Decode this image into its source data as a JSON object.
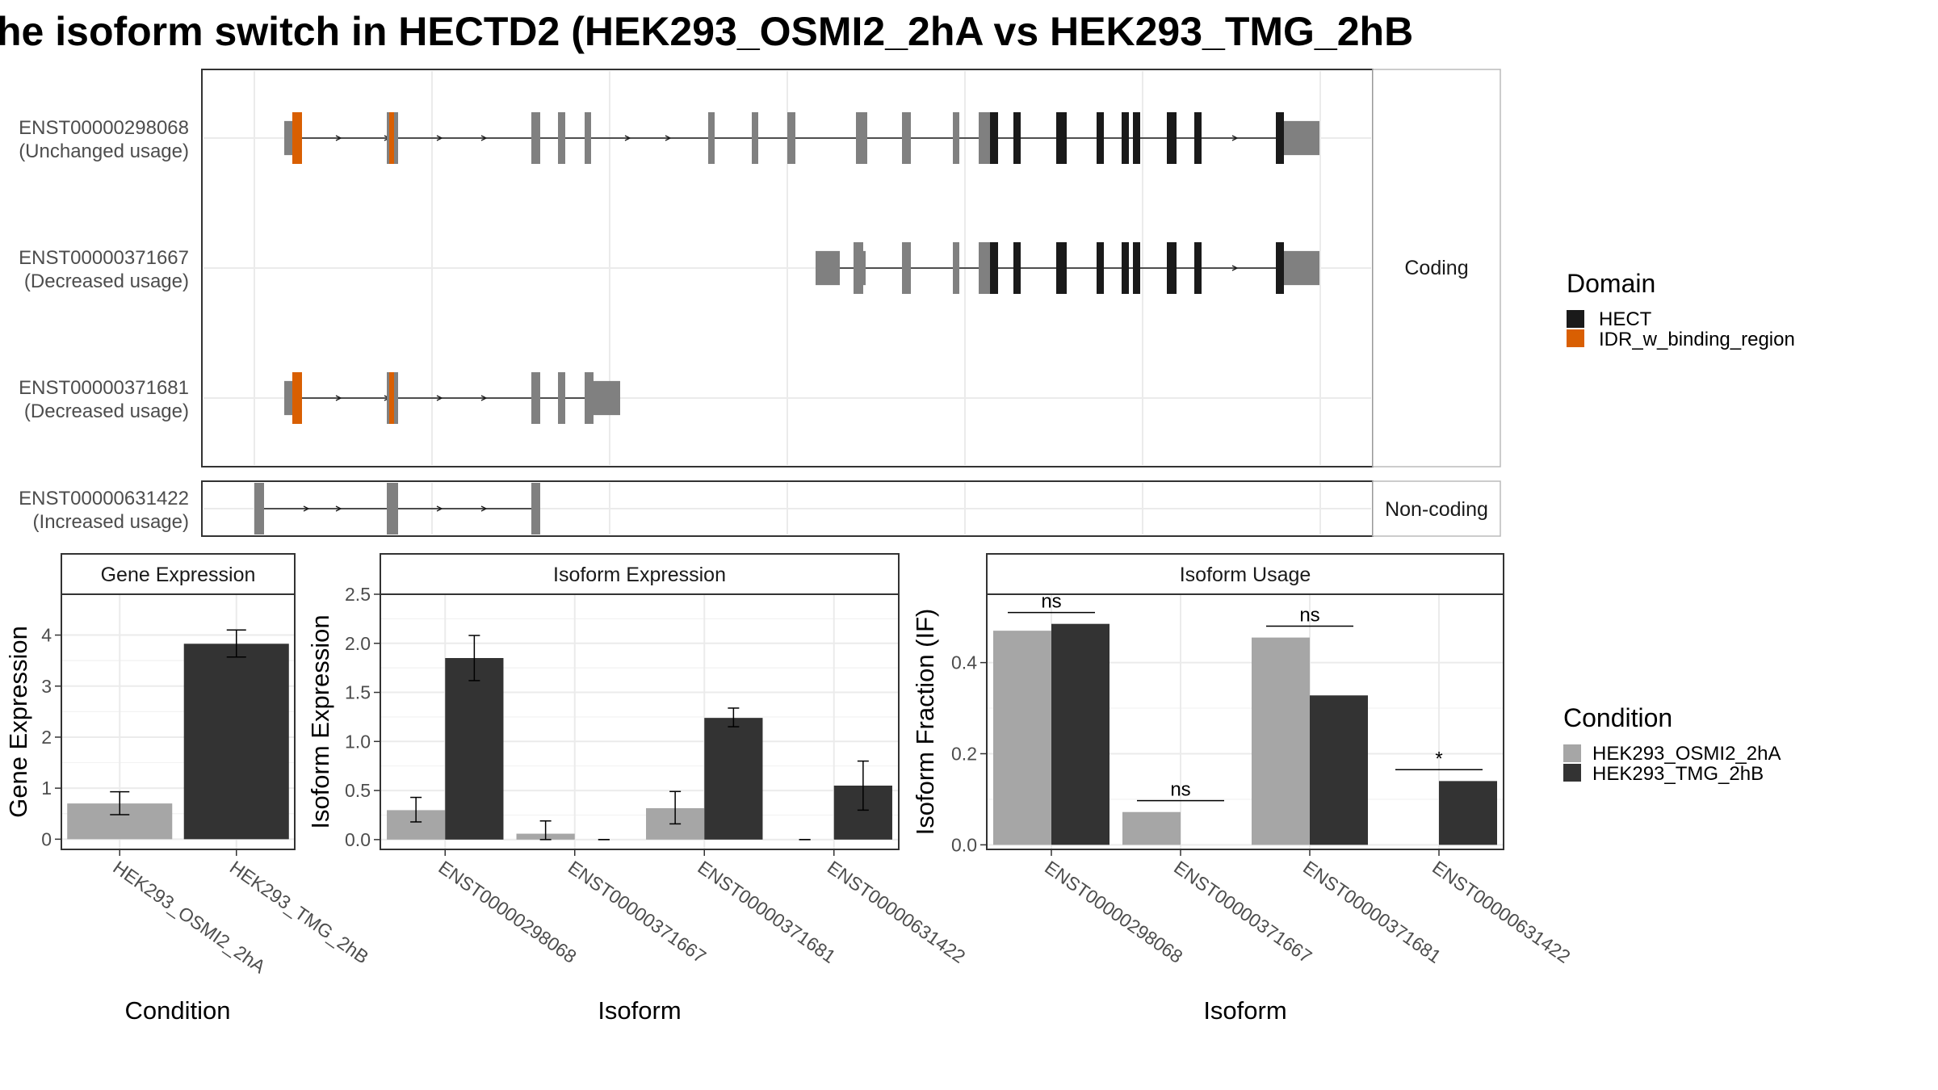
{
  "figure": {
    "title": "he isoform switch in HECTD2 (HEK293_OSMI2_2hA vs HEK293_TMG_2hB"
  },
  "colors": {
    "exon": "#808080",
    "hect": "#1a1a1a",
    "idr": "#d95f02",
    "cond_a": "#a6a6a6",
    "cond_b": "#333333"
  },
  "domain_legend": {
    "title": "Domain",
    "items": [
      {
        "label": "HECT",
        "color": "#1a1a1a"
      },
      {
        "label": "IDR_w_binding_region",
        "color": "#d95f02"
      }
    ]
  },
  "condition_legend": {
    "title": "Condition",
    "items": [
      {
        "label": "HEK293_OSMI2_2hA",
        "color": "#a6a6a6"
      },
      {
        "label": "HEK293_TMG_2hB",
        "color": "#333333"
      }
    ]
  },
  "structure": {
    "coding_strip": "Coding",
    "noncoding_strip": "Non-coding",
    "transcripts": [
      {
        "id": "ENST00000298068",
        "usage": "(Unchanged usage)",
        "group": "coding"
      },
      {
        "id": "ENST00000371667",
        "usage": "(Decreased usage)",
        "group": "coding"
      },
      {
        "id": "ENST00000371681",
        "usage": "(Decreased usage)",
        "group": "coding"
      },
      {
        "id": "ENST00000631422",
        "usage": "(Increased usage)",
        "group": "noncoding"
      }
    ]
  },
  "chart_data": [
    {
      "type": "bar",
      "panel": "Gene Expression",
      "xlabel": "Condition",
      "ylabel": "Gene Expression",
      "ylim": [
        -0.2,
        4.8
      ],
      "yticks": [
        0,
        1,
        2,
        3,
        4
      ],
      "categories": [
        "HEK293_OSMI2_2hA",
        "HEK293_TMG_2hB"
      ],
      "values": [
        0.7,
        3.83
      ],
      "errors": [
        [
          0.48,
          0.93
        ],
        [
          3.57,
          4.1
        ]
      ]
    },
    {
      "type": "bar",
      "panel": "Isoform Expression",
      "xlabel": "Isoform",
      "ylabel": "Isoform Expression",
      "ylim": [
        -0.1,
        2.5
      ],
      "yticks": [
        0.0,
        0.5,
        1.0,
        1.5,
        2.0,
        2.5
      ],
      "categories": [
        "ENST00000298068",
        "ENST00000371667",
        "ENST00000371681",
        "ENST00000631422"
      ],
      "series": [
        {
          "condition": "HEK293_OSMI2_2hA",
          "values": [
            0.3,
            0.06,
            0.32,
            0.0
          ],
          "errors": [
            [
              0.18,
              0.43
            ],
            [
              0.0,
              0.19
            ],
            [
              0.16,
              0.49
            ],
            [
              0.0,
              0.0
            ]
          ]
        },
        {
          "condition": "HEK293_TMG_2hB",
          "values": [
            1.85,
            0.0,
            1.24,
            0.55
          ],
          "errors": [
            [
              1.62,
              2.08
            ],
            [
              0.0,
              0.0
            ],
            [
              1.15,
              1.34
            ],
            [
              0.3,
              0.8
            ]
          ]
        }
      ]
    },
    {
      "type": "bar",
      "panel": "Isoform Usage",
      "xlabel": "Isoform",
      "ylabel": "Isoform Fraction (IF)",
      "ylim": [
        -0.01,
        0.55
      ],
      "yticks": [
        0.0,
        0.2,
        0.4
      ],
      "categories": [
        "ENST00000298068",
        "ENST00000371667",
        "ENST00000371681",
        "ENST00000631422"
      ],
      "series": [
        {
          "condition": "HEK293_OSMI2_2hA",
          "values": [
            0.47,
            0.072,
            0.455,
            0.0
          ]
        },
        {
          "condition": "HEK293_TMG_2hB",
          "values": [
            0.485,
            0.0,
            0.328,
            0.14
          ]
        }
      ],
      "significance": [
        {
          "label": "ns",
          "y": 0.51
        },
        {
          "label": "ns",
          "y": 0.097
        },
        {
          "label": "ns",
          "y": 0.48
        },
        {
          "label": "*",
          "y": 0.165
        }
      ]
    }
  ]
}
